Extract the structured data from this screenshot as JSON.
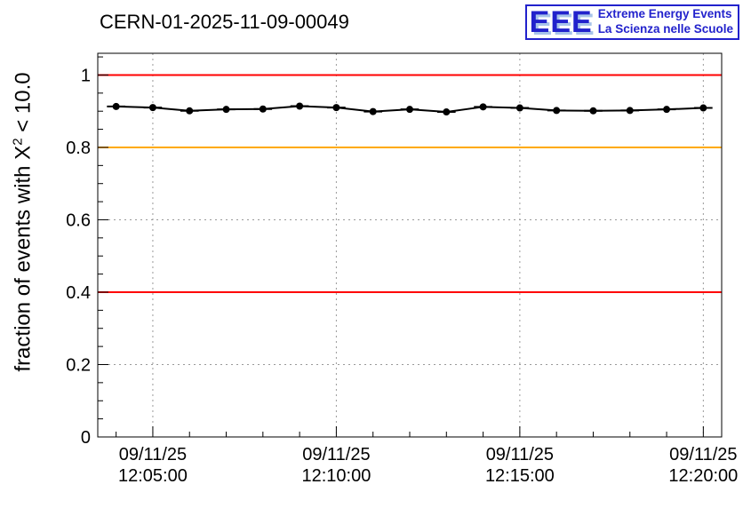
{
  "header": {
    "title": "CERN-01-2025-11-09-00049",
    "logo": {
      "acronym": "EEE",
      "line1": "Extreme Energy Events",
      "line2": "La Scienza nelle Scuole",
      "blue": "#2222cc",
      "shadow_blue": "#a8c4ea"
    }
  },
  "chart_data": {
    "type": "line",
    "title": "CERN-01-2025-11-09-00049",
    "ylabel": "fraction of events with X^2 < 10.0",
    "ylabel_parts": {
      "prefix": "fraction of events with X",
      "sup": "2",
      "suffix": " < 10.0"
    },
    "xlabel": "",
    "grid": true,
    "ylim": [
      0,
      1.06
    ],
    "x_range_seconds": [
      210,
      1230
    ],
    "y_ticks": [
      {
        "value": 0,
        "label": "0"
      },
      {
        "value": 0.2,
        "label": "0.2"
      },
      {
        "value": 0.4,
        "label": "0.4"
      },
      {
        "value": 0.6,
        "label": "0.6"
      },
      {
        "value": 0.8,
        "label": "0.8"
      },
      {
        "value": 1,
        "label": "1"
      }
    ],
    "x_ticks": [
      {
        "seconds": 300,
        "date": "09/11/25",
        "time": "12:05:00"
      },
      {
        "seconds": 600,
        "date": "09/11/25",
        "time": "12:10:00"
      },
      {
        "seconds": 900,
        "date": "09/11/25",
        "time": "12:15:00"
      },
      {
        "seconds": 1200,
        "date": "09/11/25",
        "time": "12:20:00"
      }
    ],
    "reference_lines": [
      {
        "y": 1.0,
        "color": "#ff0000"
      },
      {
        "y": 0.8,
        "color": "#ffaa00"
      },
      {
        "y": 0.4,
        "color": "#ff0000"
      }
    ],
    "series": [
      {
        "name": "fraction of events with chi2 < 10.0",
        "color": "#000000",
        "marker": "circle",
        "x_error_seconds": 15,
        "x_seconds": [
          240,
          300,
          360,
          420,
          480,
          540,
          600,
          660,
          720,
          780,
          840,
          900,
          960,
          1020,
          1080,
          1140,
          1200
        ],
        "values": [
          0.913,
          0.91,
          0.901,
          0.905,
          0.906,
          0.914,
          0.91,
          0.899,
          0.905,
          0.898,
          0.912,
          0.909,
          0.902,
          0.901,
          0.902,
          0.905,
          0.909
        ]
      }
    ]
  }
}
